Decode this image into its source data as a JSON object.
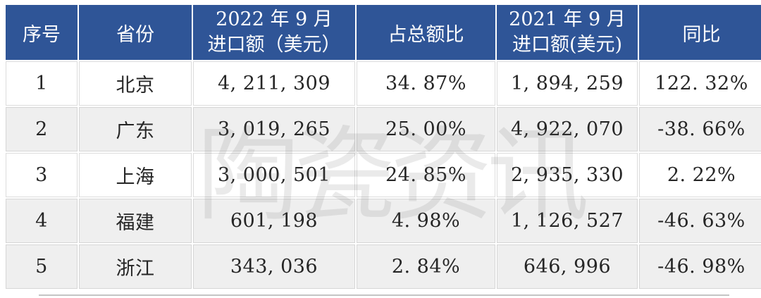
{
  "header": {
    "col_no": "序号",
    "col_province": "省份",
    "col_2022_line1": "2022 年 9 月",
    "col_2022_line2": "进口额（美元）",
    "col_share": "占总额比",
    "col_2021_line1": "2021 年 9 月",
    "col_2021_line2": "进口额(美元)",
    "col_yoy": "同比"
  },
  "table": {
    "rows": [
      {
        "no": "1",
        "province": "北京",
        "import_2022": "4, 211, 309",
        "share": "34. 87%",
        "import_2021": "1, 894, 259",
        "yoy": "122. 32%"
      },
      {
        "no": "2",
        "province": "广东",
        "import_2022": "3, 019, 265",
        "share": "25. 00%",
        "import_2021": "4, 922, 070",
        "yoy": "-38. 66%"
      },
      {
        "no": "3",
        "province": "上海",
        "import_2022": "3, 000, 501",
        "share": "24. 85%",
        "import_2021": "2, 935, 330",
        "yoy": "2. 22%"
      },
      {
        "no": "4",
        "province": "福建",
        "import_2022": "601, 198",
        "share": "4. 98%",
        "import_2021": "1, 126, 527",
        "yoy": "-46. 63%"
      },
      {
        "no": "5",
        "province": "浙江",
        "import_2022": "343, 036",
        "share": "2. 84%",
        "import_2021": "646, 996",
        "yoy": "-46. 98%"
      }
    ]
  },
  "watermark": "陶瓷资讯",
  "colors": {
    "header_bg": "#2f5597",
    "header_text": "#ffffff",
    "row_alt_bg": "#efefef",
    "body_text": "#262626"
  },
  "chart_data": {
    "type": "table",
    "title": "",
    "columns": [
      "序号",
      "省份",
      "2022年9月进口额（美元）",
      "占总额比",
      "2021年9月进口额(美元)",
      "同比"
    ],
    "rows": [
      [
        "1",
        "北京",
        "4,211,309",
        "34.87%",
        "1,894,259",
        "122.32%"
      ],
      [
        "2",
        "广东",
        "3,019,265",
        "25.00%",
        "4,922,070",
        "-38.66%"
      ],
      [
        "3",
        "上海",
        "3,000,501",
        "24.85%",
        "2,935,330",
        "2.22%"
      ],
      [
        "4",
        "福建",
        "601,198",
        "4.98%",
        "1,126,527",
        "-46.63%"
      ],
      [
        "5",
        "浙江",
        "343,036",
        "2.84%",
        "646,996",
        "-46.98%"
      ]
    ],
    "watermark": "陶瓷资讯"
  }
}
